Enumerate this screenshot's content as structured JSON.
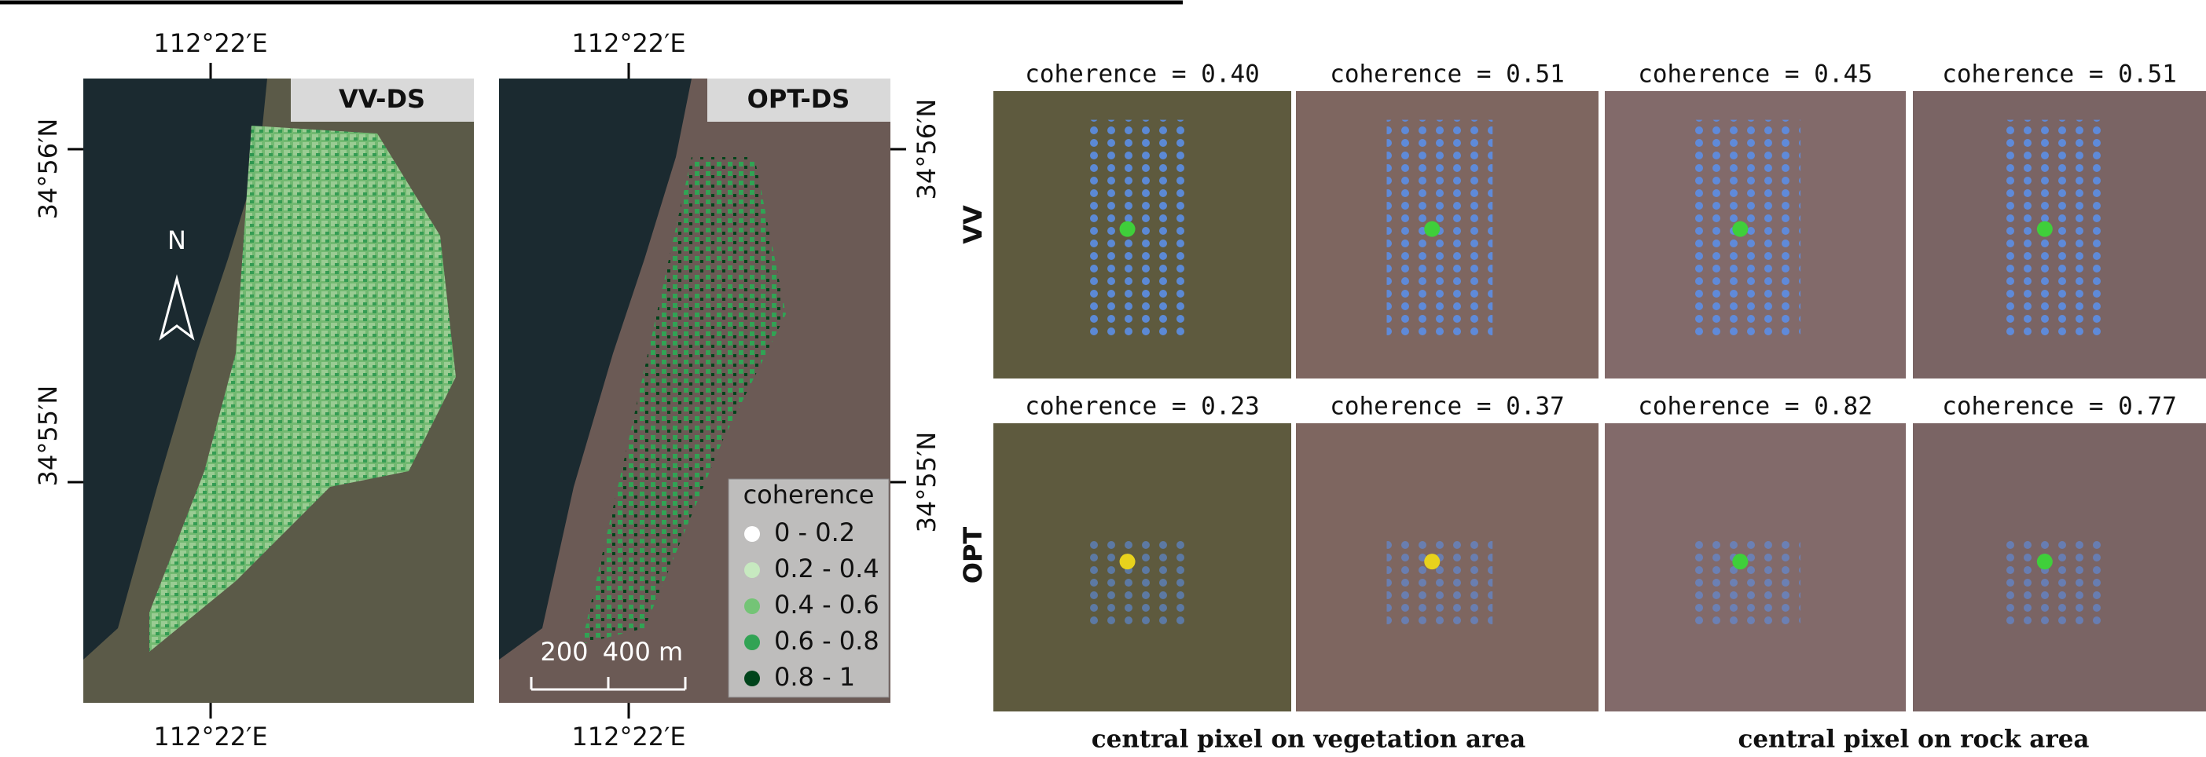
{
  "maps": [
    {
      "label": "VV-DS",
      "top_lon": "112°22′E",
      "bottom_lon": "112°22′E",
      "lat_labels": [
        "34°56′N",
        "34°55′N"
      ]
    },
    {
      "label": "OPT-DS",
      "top_lon": "112°22′E",
      "bottom_lon": "112°22′E",
      "lat_labels": [
        "34°56′N",
        "34°55′N"
      ]
    }
  ],
  "north": "N",
  "scale_bar": [
    "200",
    "400 m"
  ],
  "legend": {
    "title": "coherence",
    "items": [
      {
        "label": "0 - 0.2",
        "color": "#ffffff"
      },
      {
        "label": "0.2 - 0.4",
        "color": "#c7e9c0"
      },
      {
        "label": "0.4 - 0.6",
        "color": "#74c476"
      },
      {
        "label": "0.6 - 0.8",
        "color": "#31a354"
      },
      {
        "label": "0.8 - 1",
        "color": "#00441b"
      }
    ]
  },
  "grid": {
    "row_labels": [
      "VV",
      "OPT"
    ],
    "titles": [
      [
        "coherence = 0.40",
        "coherence = 0.51",
        "coherence = 0.45",
        "coherence = 0.51"
      ],
      [
        "coherence = 0.23",
        "coherence = 0.37",
        "coherence = 0.82",
        "coherence = 0.77"
      ]
    ],
    "captions": [
      "central pixel on vegetation area",
      "central pixel on rock area"
    ]
  }
}
